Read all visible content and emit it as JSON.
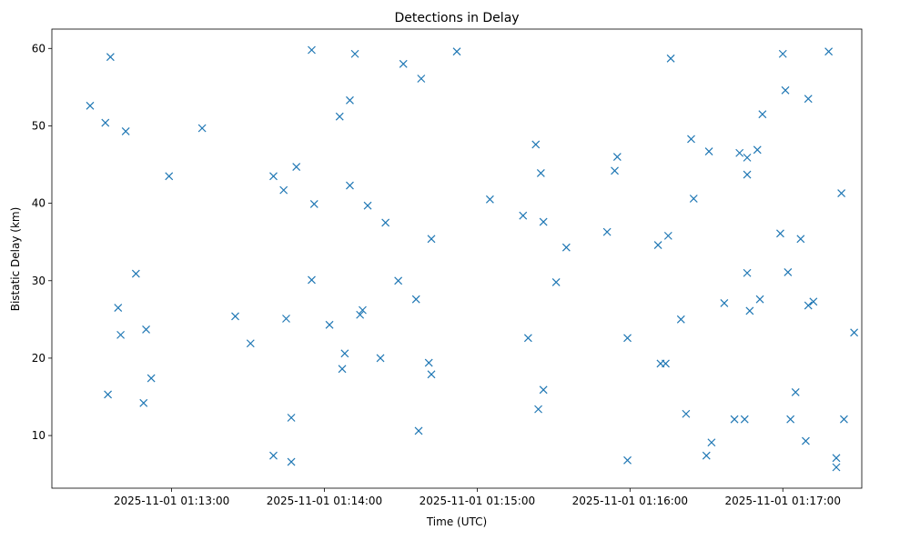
{
  "chart_data": {
    "type": "scatter",
    "title": "Detections in Delay",
    "xlabel": "Time (UTC)",
    "ylabel": "Bistatic Delay (km)",
    "xlim": [
      "2025-11-01 01:12:13",
      "2025-11-01 01:17:31"
    ],
    "ylim": [
      3.2,
      62.5
    ],
    "x_ticks": [
      "2025-11-01 01:13:00",
      "2025-11-01 01:14:00",
      "2025-11-01 01:15:00",
      "2025-11-01 01:16:00",
      "2025-11-01 01:17:00"
    ],
    "y_ticks": [
      "10",
      "20",
      "30",
      "40",
      "50",
      "60"
    ],
    "grid": false,
    "marker": "x",
    "color": "#1f77b4",
    "points": [
      [
        "01:12:28",
        52.6
      ],
      [
        "01:12:34",
        50.4
      ],
      [
        "01:12:36",
        58.9
      ],
      [
        "01:12:35",
        15.3
      ],
      [
        "01:12:39",
        26.5
      ],
      [
        "01:12:40",
        23.0
      ],
      [
        "01:12:42",
        49.3
      ],
      [
        "01:12:46",
        30.9
      ],
      [
        "01:12:49",
        14.2
      ],
      [
        "01:12:50",
        23.7
      ],
      [
        "01:12:52",
        17.4
      ],
      [
        "01:12:59",
        43.5
      ],
      [
        "01:13:12",
        49.7
      ],
      [
        "01:13:25",
        25.4
      ],
      [
        "01:13:31",
        21.9
      ],
      [
        "01:13:40",
        43.5
      ],
      [
        "01:13:40",
        7.4
      ],
      [
        "01:13:44",
        41.7
      ],
      [
        "01:13:45",
        25.1
      ],
      [
        "01:13:47",
        12.3
      ],
      [
        "01:13:47",
        6.6
      ],
      [
        "01:13:49",
        44.7
      ],
      [
        "01:13:55",
        59.8
      ],
      [
        "01:13:55",
        30.1
      ],
      [
        "01:13:56",
        39.9
      ],
      [
        "01:14:02",
        24.3
      ],
      [
        "01:14:06",
        51.2
      ],
      [
        "01:14:07",
        18.6
      ],
      [
        "01:14:08",
        20.6
      ],
      [
        "01:14:10",
        53.3
      ],
      [
        "01:14:10",
        42.3
      ],
      [
        "01:14:12",
        59.3
      ],
      [
        "01:14:14",
        25.6
      ],
      [
        "01:14:15",
        26.2
      ],
      [
        "01:14:17",
        39.7
      ],
      [
        "01:14:22",
        20.0
      ],
      [
        "01:14:24",
        37.5
      ],
      [
        "01:14:29",
        30.0
      ],
      [
        "01:14:31",
        58.0
      ],
      [
        "01:14:36",
        27.6
      ],
      [
        "01:14:37",
        10.6
      ],
      [
        "01:14:38",
        56.1
      ],
      [
        "01:14:41",
        19.4
      ],
      [
        "01:14:42",
        17.9
      ],
      [
        "01:14:42",
        35.4
      ],
      [
        "01:14:52",
        59.6
      ],
      [
        "01:15:05",
        40.5
      ],
      [
        "01:15:18",
        38.4
      ],
      [
        "01:15:20",
        22.6
      ],
      [
        "01:15:23",
        47.6
      ],
      [
        "01:15:24",
        13.4
      ],
      [
        "01:15:25",
        43.9
      ],
      [
        "01:15:26",
        37.6
      ],
      [
        "01:15:26",
        15.9
      ],
      [
        "01:15:31",
        29.8
      ],
      [
        "01:15:35",
        34.3
      ],
      [
        "01:15:51",
        36.3
      ],
      [
        "01:15:54",
        44.2
      ],
      [
        "01:15:55",
        46.0
      ],
      [
        "01:15:59",
        22.6
      ],
      [
        "01:15:59",
        6.8
      ],
      [
        "01:16:11",
        34.6
      ],
      [
        "01:16:12",
        19.3
      ],
      [
        "01:16:14",
        19.3
      ],
      [
        "01:16:15",
        35.8
      ],
      [
        "01:16:16",
        58.7
      ],
      [
        "01:16:20",
        25.0
      ],
      [
        "01:16:22",
        12.8
      ],
      [
        "01:16:24",
        48.3
      ],
      [
        "01:16:25",
        40.6
      ],
      [
        "01:16:30",
        7.4
      ],
      [
        "01:16:31",
        46.7
      ],
      [
        "01:16:32",
        9.1
      ],
      [
        "01:16:37",
        27.1
      ],
      [
        "01:16:41",
        12.1
      ],
      [
        "01:16:43",
        46.5
      ],
      [
        "01:16:45",
        12.1
      ],
      [
        "01:16:46",
        45.9
      ],
      [
        "01:16:46",
        43.7
      ],
      [
        "01:16:46",
        31.0
      ],
      [
        "01:16:47",
        26.1
      ],
      [
        "01:16:50",
        46.9
      ],
      [
        "01:16:51",
        27.6
      ],
      [
        "01:16:52",
        51.5
      ],
      [
        "01:16:59",
        36.1
      ],
      [
        "01:17:00",
        59.3
      ],
      [
        "01:17:01",
        54.6
      ],
      [
        "01:17:02",
        31.1
      ],
      [
        "01:17:03",
        12.1
      ],
      [
        "01:17:05",
        15.6
      ],
      [
        "01:17:07",
        35.4
      ],
      [
        "01:17:09",
        9.3
      ],
      [
        "01:17:10",
        53.5
      ],
      [
        "01:17:10",
        26.8
      ],
      [
        "01:17:12",
        27.3
      ],
      [
        "01:17:18",
        59.6
      ],
      [
        "01:17:21",
        7.1
      ],
      [
        "01:17:21",
        5.9
      ],
      [
        "01:17:23",
        41.3
      ],
      [
        "01:17:24",
        12.1
      ],
      [
        "01:17:28",
        23.3
      ]
    ]
  }
}
